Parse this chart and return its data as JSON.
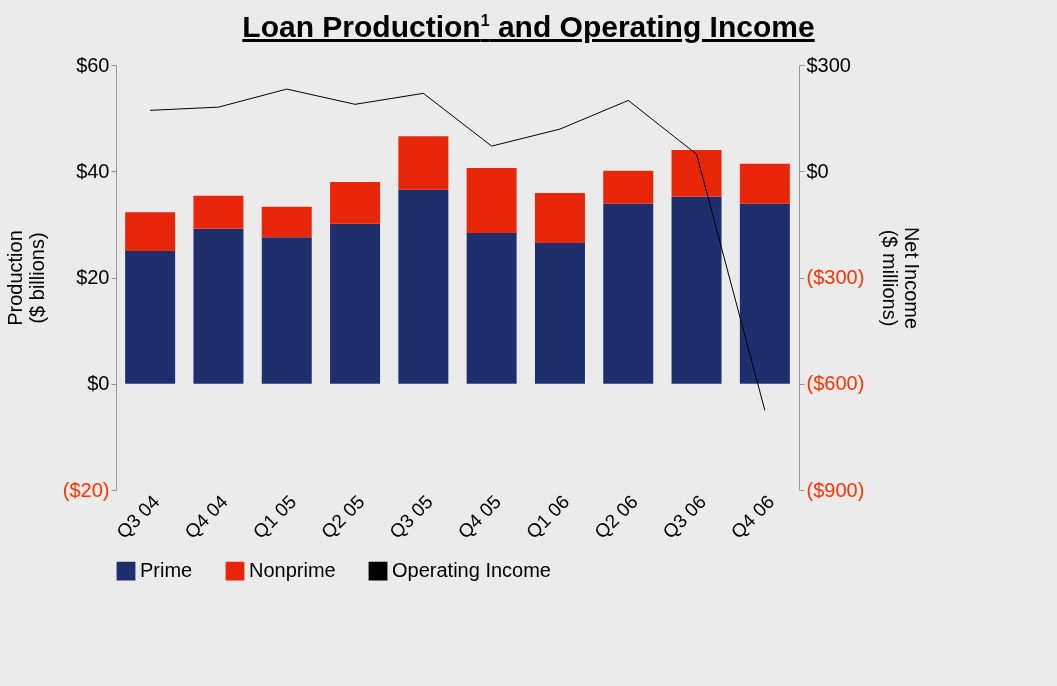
{
  "chart_data": {
    "type": "bar",
    "title": "Loan Production$^{1}$  and Operating Income",
    "ylabel": "Production\n($ billions)",
    "y2label": "Net Income\n($ millions)",
    "categories": [
      "Q3 04",
      "Q4 04",
      "Q1 05",
      "Q2 05",
      "Q3 05",
      "Q4 05",
      "Q1 06",
      "Q2 06",
      "Q3 06",
      "Q4 06"
    ],
    "stacked": true,
    "series": [
      {
        "name": "Prime",
        "color": "#1f2f6e",
        "values": [
          25.0,
          29.2,
          27.6,
          30.1,
          36.5,
          28.4,
          26.5,
          33.9,
          35.2,
          33.9
        ]
      },
      {
        "name": "Nonprime",
        "color": "#e8260a",
        "values": [
          7.3,
          6.2,
          5.7,
          7.9,
          10.1,
          12.2,
          9.4,
          6.2,
          8.8,
          7.5
        ]
      },
      {
        "name": "Operating Income",
        "type": "line",
        "axis": "y2",
        "color": "#000000",
        "values": [
          172,
          181,
          232,
          189,
          220,
          71,
          119,
          200,
          48,
          -675
        ]
      }
    ],
    "ylim": [
      -20,
      60
    ],
    "yticks": [
      {
        "value": -20,
        "label": "($20)"
      },
      {
        "value": 0,
        "label": "$0"
      },
      {
        "value": 20,
        "label": "$20"
      },
      {
        "value": 40,
        "label": "$40"
      },
      {
        "value": 60,
        "label": "$60"
      }
    ],
    "y2lim": [
      -900,
      300
    ],
    "y2ticks": [
      {
        "value": -900,
        "label": "($900)"
      },
      {
        "value": -600,
        "label": "($600)"
      },
      {
        "value": -300,
        "label": "($300)"
      },
      {
        "value": 0,
        "label": "$0"
      },
      {
        "value": 300,
        "label": "$300"
      }
    ],
    "legend": "bottom",
    "grid": false
  }
}
